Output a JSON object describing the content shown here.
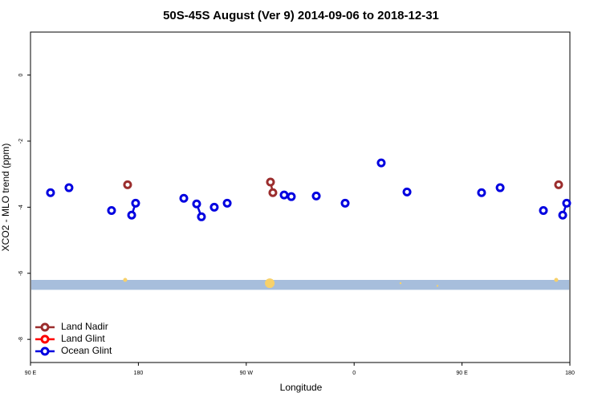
{
  "chart_data": {
    "type": "line",
    "title": "50S-45S August (Ver 9)   2014-09-06 to 2018-12-31",
    "x_label": "Longitude",
    "y_label": "XCO2 - MLO trend (ppm)",
    "xlim": [
      -270,
      180
    ],
    "ylim": [
      -8.7,
      1.3
    ],
    "xticks": [
      {
        "value": -270,
        "label": "90 E"
      },
      {
        "value": -180,
        "label": "180"
      },
      {
        "value": -90,
        "label": "90 W"
      },
      0,
      {
        "value": 90,
        "label": "90 E"
      },
      180
    ],
    "yticks": [
      0,
      -2,
      -4,
      -6,
      -8
    ],
    "legend": "bottom-left",
    "band": {
      "ylim": [
        -6.5,
        -6.2
      ],
      "color": "#a7bedc"
    },
    "highlights": {
      "color": "#f7d16a",
      "x": [
        -191,
        -70.4,
        38.7,
        69.5,
        168.6
      ],
      "y": [
        -6.2,
        -6.3,
        -6.3,
        -6.38,
        -6.2
      ],
      "size": [
        2.5,
        6,
        1.2,
        1.2,
        2.5
      ]
    },
    "series": [
      {
        "name": "Land Nadir",
        "color": "#9b2d2d",
        "x": [
          -189.0,
          null,
          -69.8,
          -67.8,
          null,
          170.6
        ],
        "values": [
          -3.32,
          null,
          -3.24,
          -3.56,
          null,
          -3.32
        ]
      },
      {
        "name": "Land Glint",
        "color": "#ff0000",
        "x": [],
        "values": []
      },
      {
        "name": "Ocean Glint",
        "color": "#0000e0",
        "x": [
          -253.3,
          null,
          -237.9,
          null,
          -202.4,
          null,
          -185.6,
          -182.3,
          null,
          -142.1,
          null,
          -131.4,
          -127.4,
          null,
          -116.7,
          null,
          -105.9,
          null,
          -58.4,
          null,
          -52.4,
          null,
          -31.6,
          null,
          -7.5,
          null,
          22.6,
          null,
          44.1,
          null,
          106.3,
          null,
          121.8,
          null,
          157.9,
          null,
          174.0,
          177.3
        ],
        "values": [
          -3.56,
          null,
          -3.41,
          null,
          -4.1,
          null,
          -4.24,
          -3.88,
          null,
          -3.73,
          null,
          -3.9,
          -4.29,
          null,
          -4.0,
          null,
          -3.88,
          null,
          -3.63,
          null,
          -3.68,
          null,
          -3.66,
          null,
          -3.88,
          null,
          -2.66,
          null,
          -3.54,
          null,
          -3.56,
          null,
          -3.41,
          null,
          -4.1,
          null,
          -4.24,
          -3.88
        ]
      }
    ]
  }
}
